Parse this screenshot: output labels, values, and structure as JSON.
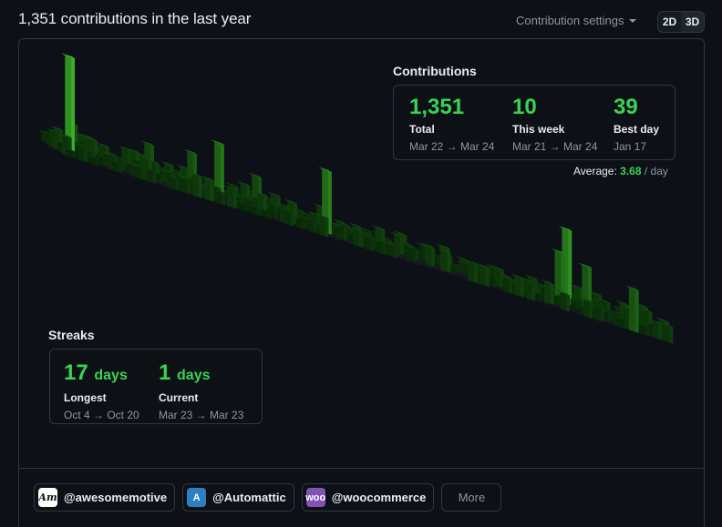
{
  "header": {
    "title": "1,351 contributions in the last year",
    "settings_label": "Contribution settings",
    "view_2d": "2D",
    "view_3d": "3D",
    "active_view": "3D"
  },
  "contributions": {
    "title": "Contributions",
    "total": {
      "value": "1,351",
      "label": "Total",
      "range": "Mar 22 → Mar 24"
    },
    "this_week": {
      "value": "10",
      "label": "This week",
      "range": "Mar 21 → Mar 24"
    },
    "best_day": {
      "value": "39",
      "label": "Best day",
      "range": "Jan 17"
    },
    "average_label": "Average:",
    "average_value": "3.68",
    "average_unit": "/ day"
  },
  "streaks": {
    "title": "Streaks",
    "longest": {
      "value": "17",
      "unit": "days",
      "label": "Longest",
      "range": "Oct 4 → Oct 20"
    },
    "current": {
      "value": "1",
      "unit": "days",
      "label": "Current",
      "range": "Mar 23 → Mar 23"
    }
  },
  "organizations": [
    {
      "name": "@awesomemotive",
      "logo_text": "Am",
      "color": "#ffffff"
    },
    {
      "name": "@Automattic",
      "logo_text": "A",
      "color": "#2d7fc1"
    },
    {
      "name": "@woocommerce",
      "logo_text": "woo",
      "color": "#7f54b3"
    }
  ],
  "more_label": "More",
  "colors": {
    "accent": "#39d353",
    "background": "#0d1117",
    "border": "#30363d",
    "muted": "#8d96a0"
  }
}
